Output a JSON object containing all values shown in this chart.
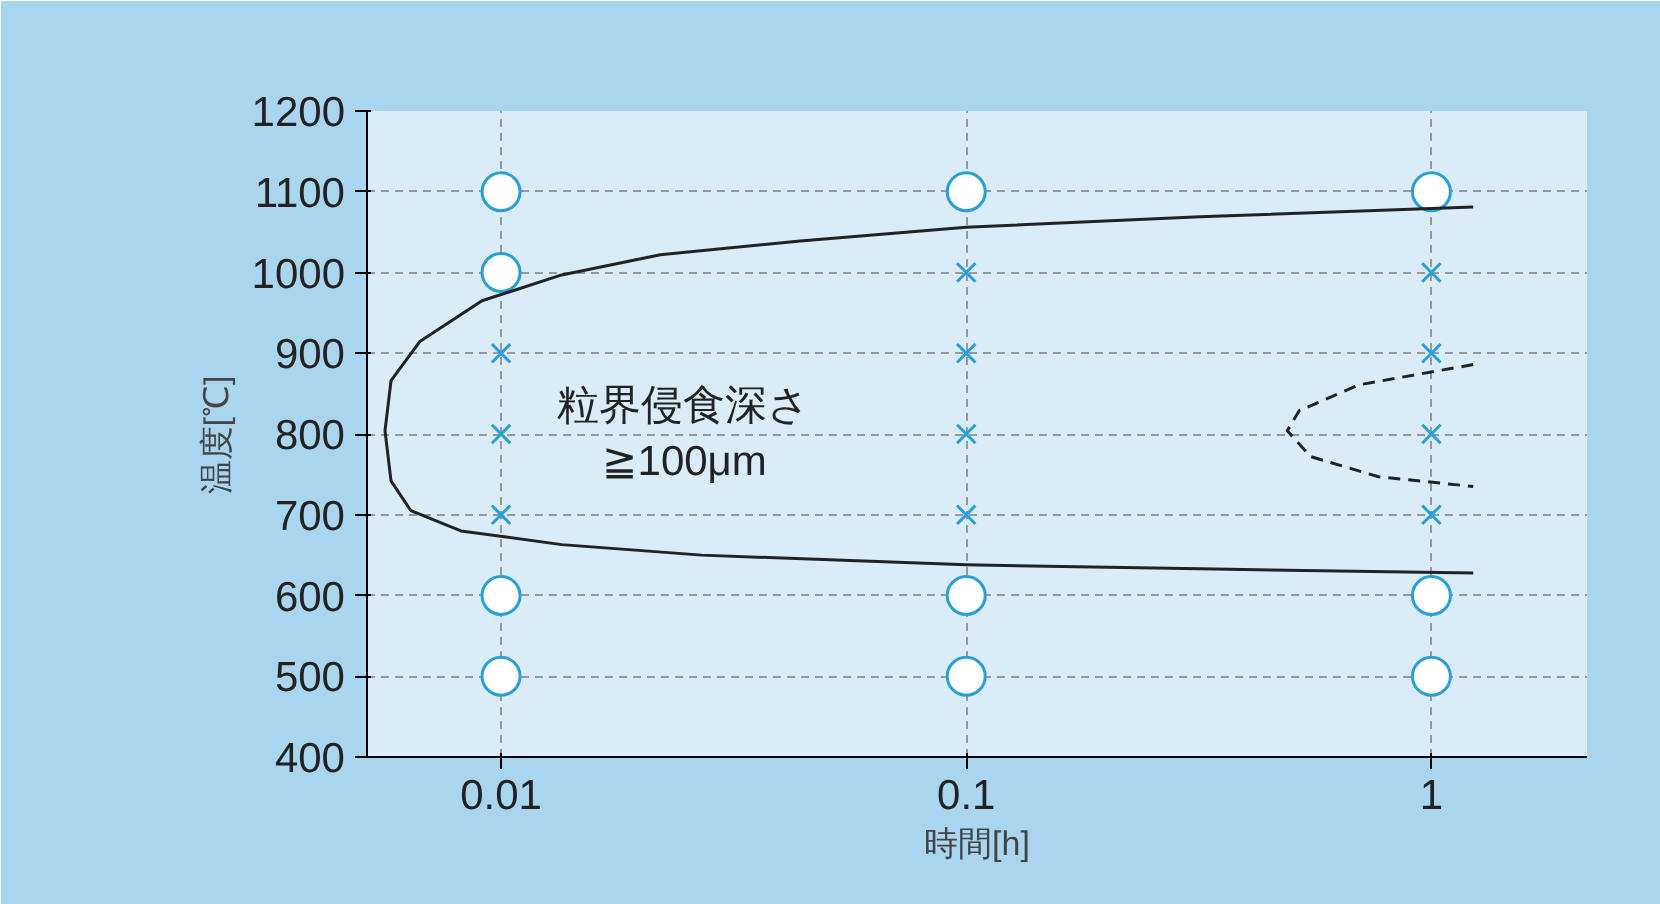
{
  "chart_data": {
    "type": "scatter",
    "xlabel": "時間[h]",
    "ylabel": "温度[℃]",
    "log": "x",
    "xlim": [
      0.00515,
      2.16
    ],
    "xticks": [
      0.01,
      0.1,
      1
    ],
    "ylim": [
      400,
      1200
    ],
    "yticks": [
      400,
      500,
      600,
      700,
      800,
      900,
      1000,
      1100,
      1200
    ],
    "grid": true,
    "series": [
      {
        "marker": "circle",
        "color": "#2a9fd6",
        "x": [
          0.01,
          0.01,
          0.01,
          0.01,
          0.1,
          0.1,
          0.1,
          1,
          1,
          1
        ],
        "values": [
          500,
          600,
          1000,
          1100,
          500,
          600,
          1100,
          500,
          600,
          1100
        ]
      },
      {
        "marker": "cross",
        "color": "#2a9fd6",
        "x": [
          0.01,
          0.01,
          0.01,
          0.1,
          0.1,
          0.1,
          0.1,
          1,
          1,
          1,
          1
        ],
        "values": [
          700,
          800,
          900,
          700,
          800,
          900,
          1000,
          700,
          800,
          900,
          1000
        ]
      },
      {
        "type": "line",
        "marker": "none",
        "line_style": "solid",
        "color": "#222222",
        "x": [
          1.23,
          0.318,
          0.1,
          0.044,
          0.022,
          0.0135,
          0.0091,
          0.0067,
          0.0058,
          0.00563,
          0.0058,
          0.0064,
          0.0082,
          0.0135,
          0.027,
          0.1,
          0.318,
          1.23
        ],
        "values": [
          1081,
          1069,
          1056,
          1039,
          1022,
          997,
          965,
          915,
          866,
          804,
          742,
          705,
          680,
          663,
          650,
          638,
          633,
          628
        ]
      },
      {
        "type": "line",
        "marker": "none",
        "line_style": "dashed",
        "color": "#222222",
        "x": [
          1.23,
          0.7,
          0.52,
          0.49,
          0.55,
          0.77,
          1.23
        ],
        "values": [
          886,
          861,
          829,
          804,
          772,
          747,
          735
        ]
      }
    ],
    "annotations": [
      "粒界侵食深さ\n≧100μm"
    ]
  }
}
